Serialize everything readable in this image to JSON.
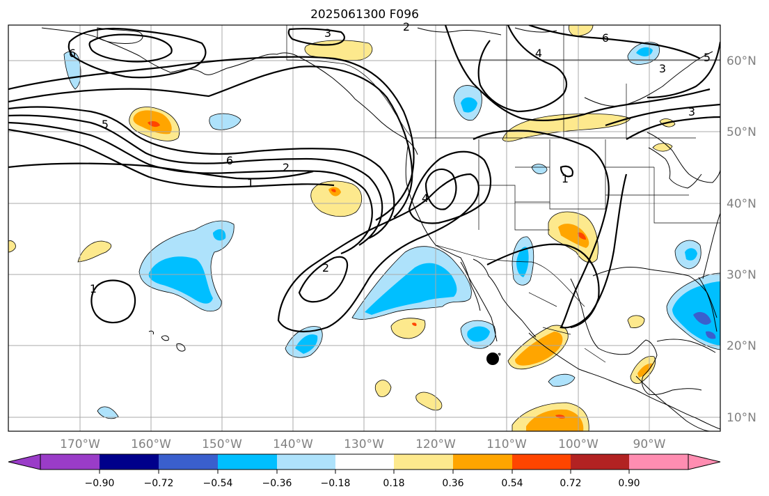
{
  "title": "2025061300 F096",
  "map": {
    "lat_labels": [
      "60°N",
      "50°N",
      "40°N",
      "30°N",
      "20°N",
      "10°N"
    ],
    "lon_labels": [
      "170°W",
      "160°W",
      "150°W",
      "140°W",
      "130°W",
      "120°W",
      "110°W",
      "100°W",
      "90°W"
    ],
    "contour_labels": [
      "1",
      "2",
      "3",
      "4",
      "5",
      "6"
    ],
    "marker": "storm-position-dot"
  },
  "colorbar": {
    "ticks": [
      "−0.90",
      "−0.72",
      "−0.54",
      "−0.36",
      "−0.18",
      "0.18",
      "0.36",
      "0.54",
      "0.72",
      "0.90"
    ],
    "colors": [
      "#9a3cc8",
      "#00008b",
      "#3a5fcd",
      "#00bfff",
      "#aee2fb",
      "#ffffff",
      "#fde98d",
      "#ffa500",
      "#ff4500",
      "#b22222",
      "#ff8db1"
    ]
  }
}
